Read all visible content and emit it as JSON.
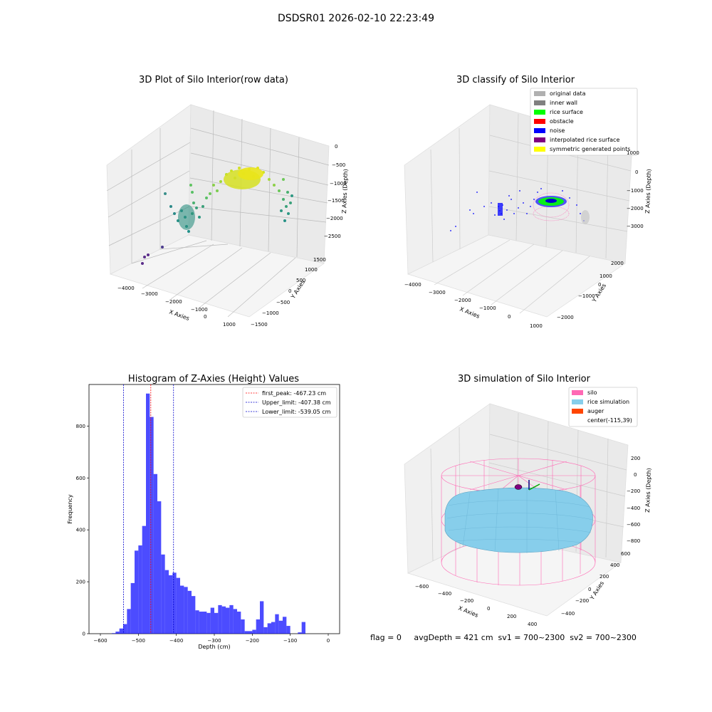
{
  "figure": {
    "suptitle": "DSDSR01 2026-02-10 22:23:49",
    "status_text": "flag = 0     avgDepth = 421 cm  sv1 = 700~2300  sv2 = 700~2300"
  },
  "panels": {
    "raw": {
      "title": "3D Plot of Silo Interior(row data)",
      "xlabel": "X Axies",
      "ylabel": "Y Axies",
      "zlabel": "Z Axies (Depth)",
      "xticks": [
        "−4000",
        "−3000",
        "−2000",
        "−1000",
        "0",
        "1000"
      ],
      "yticks": [
        "−1500",
        "−1000",
        "−500",
        "0",
        "500",
        "1000",
        "1500"
      ],
      "zticks": [
        "0",
        "−500",
        "−1000",
        "−1500",
        "−2000",
        "−2500"
      ]
    },
    "classify": {
      "title": "3D classify of Silo Interior",
      "xlabel": "X Axies",
      "ylabel": "Y Axies",
      "zlabel": "Z Axies (Depth)",
      "xticks": [
        "−4000",
        "−3000",
        "−2000",
        "−1000",
        "0",
        "1000"
      ],
      "yticks": [
        "−2000",
        "−1000",
        "0",
        "1000",
        "2000"
      ],
      "zticks": [
        "1000",
        "0",
        "−1000",
        "−2000",
        "−3000"
      ],
      "legend": [
        {
          "label": "original data",
          "color": "#b0b0b0"
        },
        {
          "label": "inner wall",
          "color": "#808080"
        },
        {
          "label": "rice surface",
          "color": "#00ff00"
        },
        {
          "label": "obstacle",
          "color": "#ff0000"
        },
        {
          "label": "noise",
          "color": "#0000ff"
        },
        {
          "label": "interpolated rice surface",
          "color": "#800080"
        },
        {
          "label": "symmetric generated points",
          "color": "#ffff00"
        }
      ]
    },
    "simulation": {
      "title": "3D simulation of Silo Interior",
      "xlabel": "X Axies",
      "ylabel": "Y Axies",
      "zlabel": "Z Axies (Depth)",
      "xticks": [
        "−600",
        "−400",
        "−200",
        "0",
        "200",
        "400"
      ],
      "yticks": [
        "−400",
        "−200",
        "0",
        "200",
        "400",
        "600"
      ],
      "zticks": [
        "200",
        "0",
        "−200",
        "−400",
        "−600",
        "−800"
      ],
      "legend": [
        {
          "label": "silo",
          "color": "#ff69b4"
        },
        {
          "label": "rice simulation",
          "color": "#87ceeb"
        },
        {
          "label": "auger",
          "color": "#ff4500"
        },
        {
          "label": "center(-115,39)",
          "color": ""
        }
      ]
    }
  },
  "chart_data": [
    {
      "type": "bar",
      "title": "Histogram of Z-Axies (Height) Values",
      "xlabel": "Depth (cm)",
      "ylabel": "Frequency",
      "xlim": [
        -630,
        30
      ],
      "ylim": [
        0,
        960
      ],
      "xticks": [
        -600,
        -500,
        -400,
        -300,
        -200,
        -100,
        0
      ],
      "yticks": [
        0,
        200,
        400,
        600,
        800
      ],
      "bar_color": "#0000ff",
      "bin_width": 10,
      "bins_left": [
        -570,
        -560,
        -550,
        -540,
        -530,
        -520,
        -510,
        -500,
        -490,
        -480,
        -470,
        -460,
        -450,
        -440,
        -430,
        -420,
        -410,
        -400,
        -390,
        -380,
        -370,
        -360,
        -350,
        -340,
        -330,
        -320,
        -310,
        -300,
        -290,
        -280,
        -270,
        -260,
        -250,
        -240,
        -230,
        -220,
        -210,
        -200,
        -190,
        -180,
        -170,
        -160,
        -150,
        -140,
        -130,
        -120,
        -110,
        -100,
        -90,
        -80,
        -70,
        -60,
        -50,
        -40,
        -30,
        -20,
        -10,
        0
      ],
      "values": [
        2,
        8,
        20,
        37,
        95,
        195,
        320,
        340,
        415,
        925,
        835,
        615,
        510,
        305,
        245,
        225,
        235,
        215,
        185,
        180,
        165,
        145,
        90,
        85,
        85,
        80,
        100,
        80,
        110,
        105,
        100,
        110,
        95,
        85,
        55,
        10,
        10,
        15,
        55,
        125,
        25,
        40,
        45,
        75,
        50,
        65,
        30,
        0,
        0,
        5,
        45,
        0,
        0,
        0,
        0,
        0,
        0,
        0
      ],
      "vlines": [
        {
          "x": -467.23,
          "color": "#ff0000",
          "label": "first_peak: -467.23 cm"
        },
        {
          "x": -407.38,
          "color": "#0000cc",
          "label": "Upper_limit: -407.38 cm"
        },
        {
          "x": -539.05,
          "color": "#0000cc",
          "label": "Lower_limit: -539.05 cm"
        }
      ],
      "legend_position": "top-right"
    }
  ]
}
